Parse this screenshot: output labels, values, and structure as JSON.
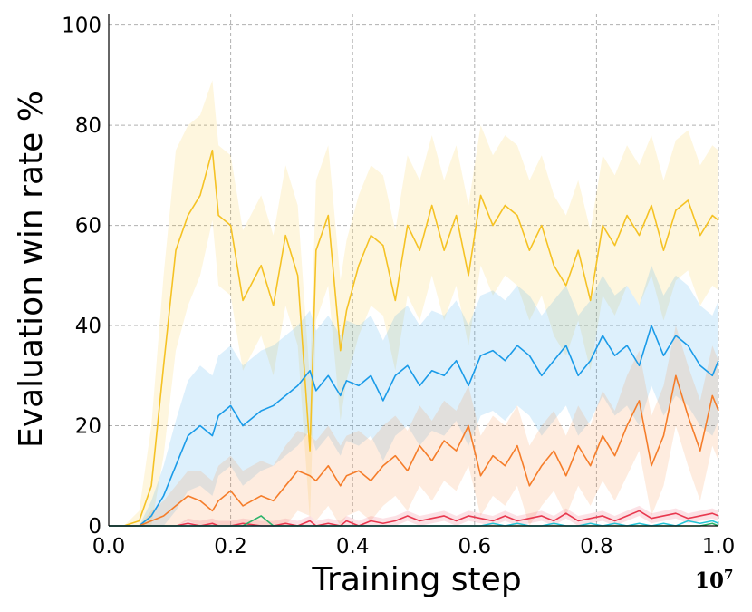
{
  "chart_data": {
    "type": "line",
    "title": "",
    "xlabel": "Training step",
    "ylabel": "Evaluation win rate %",
    "x_multiplier_label": "10",
    "x_multiplier_exponent": "7",
    "xlim": [
      0.0,
      1.0
    ],
    "ylim": [
      0,
      105
    ],
    "xticks": [
      "0.0",
      "0.2",
      "0.4",
      "0.6",
      "0.8",
      "1.0"
    ],
    "yticks": [
      "0",
      "20",
      "40",
      "60",
      "80",
      "100"
    ],
    "grid": true,
    "legend": "none",
    "x": [
      0.0,
      0.025,
      0.05,
      0.07,
      0.09,
      0.11,
      0.13,
      0.15,
      0.17,
      0.18,
      0.2,
      0.22,
      0.25,
      0.27,
      0.29,
      0.31,
      0.33,
      0.34,
      0.36,
      0.38,
      0.39,
      0.41,
      0.43,
      0.45,
      0.47,
      0.49,
      0.51,
      0.53,
      0.55,
      0.57,
      0.59,
      0.61,
      0.63,
      0.65,
      0.67,
      0.69,
      0.71,
      0.73,
      0.75,
      0.77,
      0.79,
      0.81,
      0.83,
      0.85,
      0.87,
      0.89,
      0.91,
      0.93,
      0.95,
      0.97,
      0.99,
      1.0
    ],
    "series": [
      {
        "color": "#f5c224",
        "values": [
          0,
          0,
          1,
          8,
          32,
          55,
          62,
          66,
          75,
          62,
          60,
          45,
          52,
          44,
          58,
          50,
          15,
          55,
          62,
          35,
          43,
          52,
          58,
          56,
          45,
          60,
          55,
          64,
          55,
          62,
          50,
          66,
          60,
          64,
          62,
          55,
          60,
          52,
          48,
          55,
          45,
          60,
          56,
          62,
          58,
          64,
          55,
          63,
          65,
          58,
          62,
          61
        ],
        "band": [
          0,
          0,
          2,
          12,
          18,
          20,
          18,
          16,
          14,
          14,
          14,
          14,
          14,
          14,
          14,
          14,
          14,
          14,
          14,
          14,
          14,
          14,
          14,
          14,
          14,
          14,
          14,
          14,
          14,
          14,
          14,
          14,
          14,
          14,
          14,
          14,
          14,
          14,
          14,
          14,
          14,
          14,
          14,
          14,
          14,
          14,
          14,
          14,
          14,
          14,
          14,
          14
        ]
      },
      {
        "color": "#1a9be8",
        "values": [
          0,
          0,
          0,
          2,
          6,
          12,
          18,
          20,
          18,
          22,
          24,
          20,
          23,
          24,
          26,
          28,
          31,
          27,
          30,
          26,
          29,
          28,
          30,
          25,
          30,
          32,
          28,
          31,
          30,
          33,
          28,
          34,
          35,
          33,
          36,
          34,
          30,
          33,
          36,
          30,
          33,
          38,
          34,
          36,
          32,
          40,
          34,
          38,
          36,
          32,
          30,
          33
        ],
        "band": [
          0,
          0,
          0,
          3,
          6,
          9,
          11,
          12,
          12,
          12,
          12,
          12,
          12,
          12,
          12,
          12,
          12,
          12,
          12,
          12,
          12,
          12,
          12,
          12,
          12,
          12,
          12,
          12,
          12,
          12,
          12,
          12,
          12,
          12,
          12,
          12,
          12,
          12,
          12,
          12,
          12,
          12,
          12,
          12,
          12,
          12,
          12,
          12,
          12,
          12,
          12,
          12
        ]
      },
      {
        "color": "#f57d2a",
        "values": [
          0,
          0,
          0,
          1,
          2,
          4,
          6,
          5,
          3,
          5,
          7,
          4,
          6,
          5,
          8,
          11,
          10,
          9,
          12,
          8,
          10,
          11,
          9,
          12,
          14,
          11,
          16,
          13,
          17,
          15,
          20,
          10,
          14,
          12,
          16,
          8,
          12,
          15,
          10,
          16,
          12,
          18,
          14,
          20,
          25,
          12,
          18,
          30,
          22,
          15,
          26,
          23
        ],
        "band": [
          0,
          0,
          0,
          2,
          3,
          4,
          5,
          6,
          6,
          7,
          7,
          7,
          7,
          7,
          8,
          8,
          8,
          8,
          8,
          8,
          8,
          8,
          8,
          8,
          8,
          8,
          8,
          8,
          8,
          8,
          8,
          8,
          8,
          8,
          8,
          8,
          8,
          8,
          8,
          8,
          8,
          9,
          9,
          10,
          10,
          10,
          10,
          10,
          10,
          10,
          10,
          10
        ]
      },
      {
        "color": "#e8384f",
        "values": [
          0,
          0,
          0,
          0,
          0,
          0,
          0.5,
          0,
          0.5,
          0,
          0,
          0.5,
          0,
          0,
          0.5,
          0,
          1,
          0,
          0.5,
          0,
          1,
          0,
          1,
          0.5,
          1,
          2,
          1,
          1.5,
          2,
          1,
          2,
          1.5,
          1,
          2,
          1,
          1.5,
          2,
          1,
          2.5,
          1,
          1.5,
          2,
          1,
          2,
          3,
          1.5,
          2,
          2.5,
          1.5,
          2,
          2.5,
          2
        ],
        "band": [
          0,
          0,
          0,
          0,
          0,
          0,
          1,
          1,
          1,
          1,
          1,
          1,
          1,
          1,
          1,
          1,
          1,
          1,
          1,
          1,
          1,
          1,
          1,
          1,
          1,
          1,
          1,
          1,
          1,
          1,
          1,
          1,
          1,
          1,
          1,
          1,
          1,
          1,
          1,
          1,
          1,
          1,
          1,
          1,
          1,
          1,
          1,
          1,
          1,
          1,
          1,
          1
        ]
      },
      {
        "color": "#2db36b",
        "values": [
          0,
          0,
          0,
          0,
          0,
          0,
          0,
          0,
          0,
          0,
          0,
          0,
          2,
          0,
          0,
          0,
          0,
          0,
          0,
          0,
          0,
          0,
          0,
          0,
          0,
          0,
          0,
          0,
          0,
          0,
          0,
          0,
          0,
          0,
          0,
          0,
          0,
          0,
          0,
          0,
          0,
          0,
          0,
          0,
          0,
          0,
          0,
          0,
          0,
          0,
          0.5,
          0
        ],
        "band": [
          0,
          0,
          0,
          0,
          0,
          0,
          0,
          0,
          0,
          0,
          0,
          0,
          0,
          0,
          0,
          0,
          0,
          0,
          0,
          0,
          0,
          0,
          0,
          0,
          0,
          0,
          0,
          0,
          0,
          0,
          0,
          0,
          0,
          0,
          0,
          0,
          0,
          0,
          0,
          0,
          0,
          0,
          0,
          0,
          0,
          0,
          0,
          0,
          0,
          0,
          0,
          0
        ]
      },
      {
        "color": "#26c6d6",
        "values": [
          0,
          0,
          0,
          0,
          0,
          0,
          0,
          0,
          0,
          0,
          0,
          0,
          0,
          0,
          0,
          0,
          0,
          0,
          0,
          0,
          0,
          0,
          0,
          0,
          0,
          0,
          0,
          0,
          0,
          0,
          0,
          0,
          0.5,
          0,
          0.5,
          0,
          0,
          0.5,
          0,
          0,
          0.5,
          0,
          0.5,
          0,
          0.5,
          0,
          0.5,
          0,
          1,
          0.5,
          1,
          0.5
        ],
        "band": [
          0,
          0,
          0,
          0,
          0,
          0,
          0,
          0,
          0,
          0,
          0,
          0,
          0,
          0,
          0,
          0,
          0,
          0,
          0,
          0,
          0,
          0,
          0,
          0,
          0,
          0,
          0,
          0,
          0,
          0,
          0,
          0,
          0,
          0,
          0,
          0,
          0,
          0,
          0,
          0,
          0,
          0,
          0,
          0,
          0,
          0,
          0,
          0,
          0,
          0,
          0,
          0
        ]
      }
    ]
  }
}
